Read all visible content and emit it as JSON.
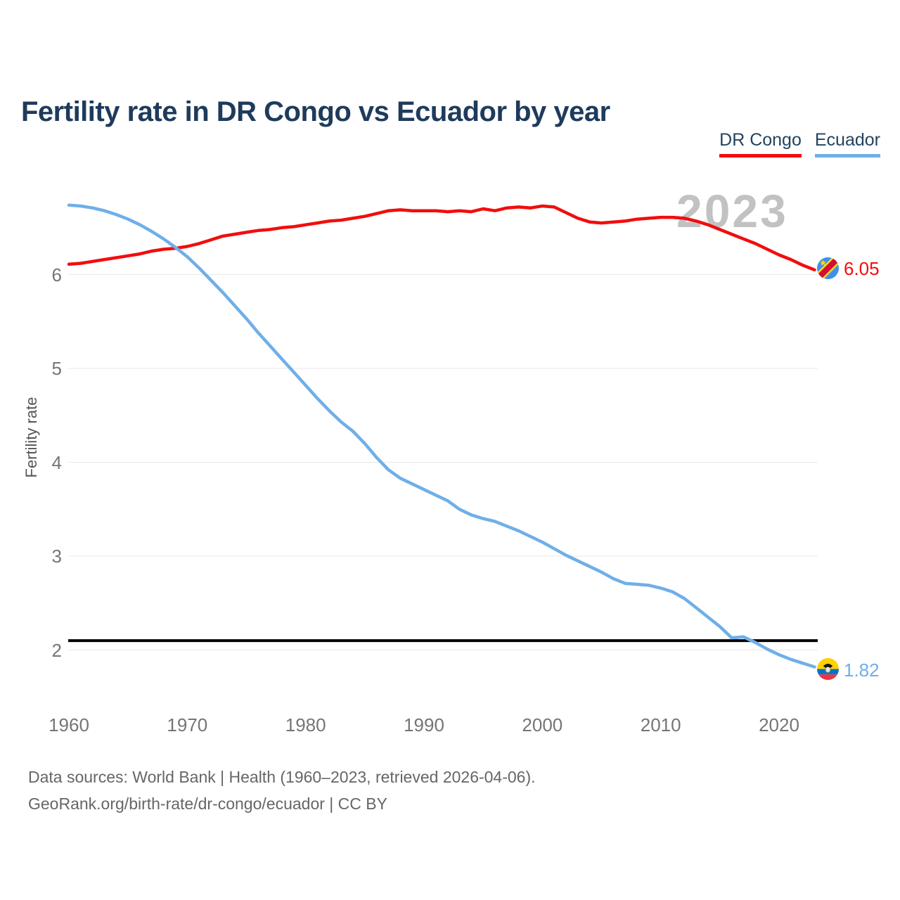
{
  "title": "Fertility rate in DR Congo vs Ecuador by year",
  "legend": [
    {
      "label": "DR Congo",
      "color": "#f20d0d"
    },
    {
      "label": "Ecuador",
      "color": "#6fafe8"
    }
  ],
  "watermark": "2023",
  "end_labels": {
    "dr_congo": "6.05",
    "ecuador": "1.82"
  },
  "footer": {
    "line1": "Data sources: World Bank | Health (1960–2023, retrieved 2026-04-06).",
    "line2": "GeoRank.org/birth-rate/dr-congo/ecuador | CC BY"
  },
  "colors": {
    "title": "#1e3b5c",
    "axis_text": "#757575",
    "watermark": "#c2c2c2",
    "footer_text": "#666666",
    "gridline": "#e9e9e9",
    "reference_line": "#000000"
  },
  "chart_data": {
    "type": "line",
    "title": "Fertility rate in DR Congo vs Ecuador by year",
    "xlabel": "",
    "ylabel": "Fertility rate",
    "x_ticks": [
      1960,
      1970,
      1980,
      1990,
      2000,
      2010,
      2020
    ],
    "y_ticks": [
      2,
      3,
      4,
      5,
      6
    ],
    "xlim": [
      1960,
      2023
    ],
    "ylim": [
      1.6,
      6.9
    ],
    "grid": "horizontal",
    "legend_position": "top-right",
    "reference_line": {
      "value": 2.1,
      "color": "#000000"
    },
    "x": [
      1960,
      1961,
      1962,
      1963,
      1964,
      1965,
      1966,
      1967,
      1968,
      1969,
      1970,
      1971,
      1972,
      1973,
      1974,
      1975,
      1976,
      1977,
      1978,
      1979,
      1980,
      1981,
      1982,
      1983,
      1984,
      1985,
      1986,
      1987,
      1988,
      1989,
      1990,
      1991,
      1992,
      1993,
      1994,
      1995,
      1996,
      1997,
      1998,
      1999,
      2000,
      2001,
      2002,
      2003,
      2004,
      2005,
      2006,
      2007,
      2008,
      2009,
      2010,
      2011,
      2012,
      2013,
      2014,
      2015,
      2016,
      2017,
      2018,
      2019,
      2020,
      2021,
      2022,
      2023
    ],
    "series": [
      {
        "name": "DR Congo",
        "color": "#f20d0d",
        "end_label": "6.05",
        "values": [
          6.11,
          6.12,
          6.14,
          6.16,
          6.18,
          6.2,
          6.22,
          6.25,
          6.27,
          6.28,
          6.3,
          6.33,
          6.37,
          6.41,
          6.43,
          6.45,
          6.47,
          6.48,
          6.5,
          6.51,
          6.53,
          6.55,
          6.57,
          6.58,
          6.6,
          6.62,
          6.65,
          6.68,
          6.69,
          6.68,
          6.68,
          6.68,
          6.67,
          6.68,
          6.67,
          6.7,
          6.68,
          6.71,
          6.72,
          6.71,
          6.73,
          6.72,
          6.66,
          6.6,
          6.56,
          6.55,
          6.56,
          6.57,
          6.59,
          6.6,
          6.61,
          6.61,
          6.6,
          6.57,
          6.53,
          6.48,
          6.43,
          6.38,
          6.33,
          6.27,
          6.21,
          6.16,
          6.1,
          6.05
        ]
      },
      {
        "name": "Ecuador",
        "color": "#6fafe8",
        "end_label": "1.82",
        "values": [
          6.74,
          6.73,
          6.71,
          6.68,
          6.64,
          6.59,
          6.53,
          6.46,
          6.38,
          6.29,
          6.19,
          6.07,
          5.94,
          5.81,
          5.67,
          5.53,
          5.38,
          5.24,
          5.1,
          4.96,
          4.82,
          4.68,
          4.55,
          4.43,
          4.33,
          4.2,
          4.05,
          3.92,
          3.83,
          3.77,
          3.71,
          3.65,
          3.59,
          3.5,
          3.44,
          3.4,
          3.37,
          3.32,
          3.27,
          3.21,
          3.15,
          3.08,
          3.01,
          2.95,
          2.89,
          2.83,
          2.76,
          2.71,
          2.7,
          2.69,
          2.66,
          2.62,
          2.55,
          2.45,
          2.35,
          2.25,
          2.13,
          2.14,
          2.08,
          2.01,
          1.95,
          1.9,
          1.86,
          1.82
        ]
      }
    ]
  }
}
